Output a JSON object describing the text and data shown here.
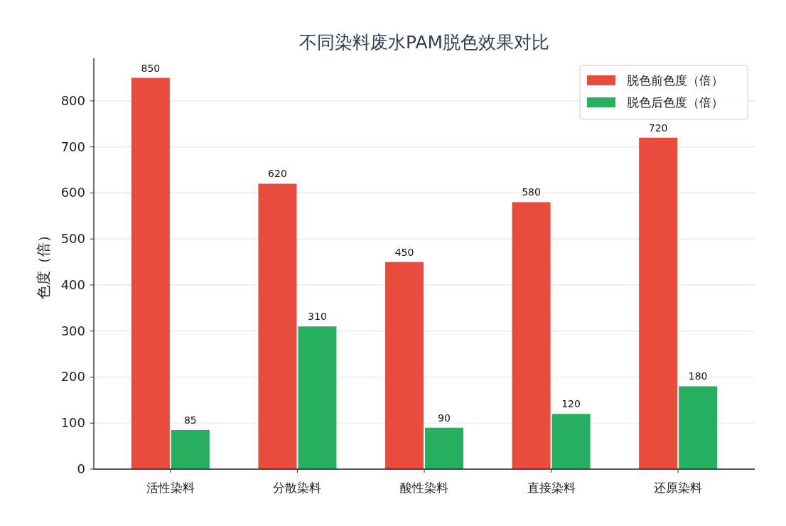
{
  "chart_data": {
    "type": "bar",
    "title": "不同染料废水PAM脱色效果对比",
    "ylabel": "色度（倍）",
    "categories": [
      "活性染料",
      "分散染料",
      "酸性染料",
      "直接染料",
      "还原染料"
    ],
    "series": [
      {
        "name": "脱色前色度（倍）",
        "color": "#e74c3c",
        "values": [
          850,
          620,
          450,
          580,
          720
        ]
      },
      {
        "name": "脱色后色度（倍）",
        "color": "#27ae60",
        "values": [
          85,
          310,
          90,
          120,
          180
        ]
      }
    ],
    "ylim": [
      0,
      892.5
    ],
    "yticks": [
      0,
      100,
      200,
      300,
      400,
      500,
      600,
      700,
      800
    ],
    "grid": "y",
    "legend": "top right",
    "data_labels": true
  }
}
